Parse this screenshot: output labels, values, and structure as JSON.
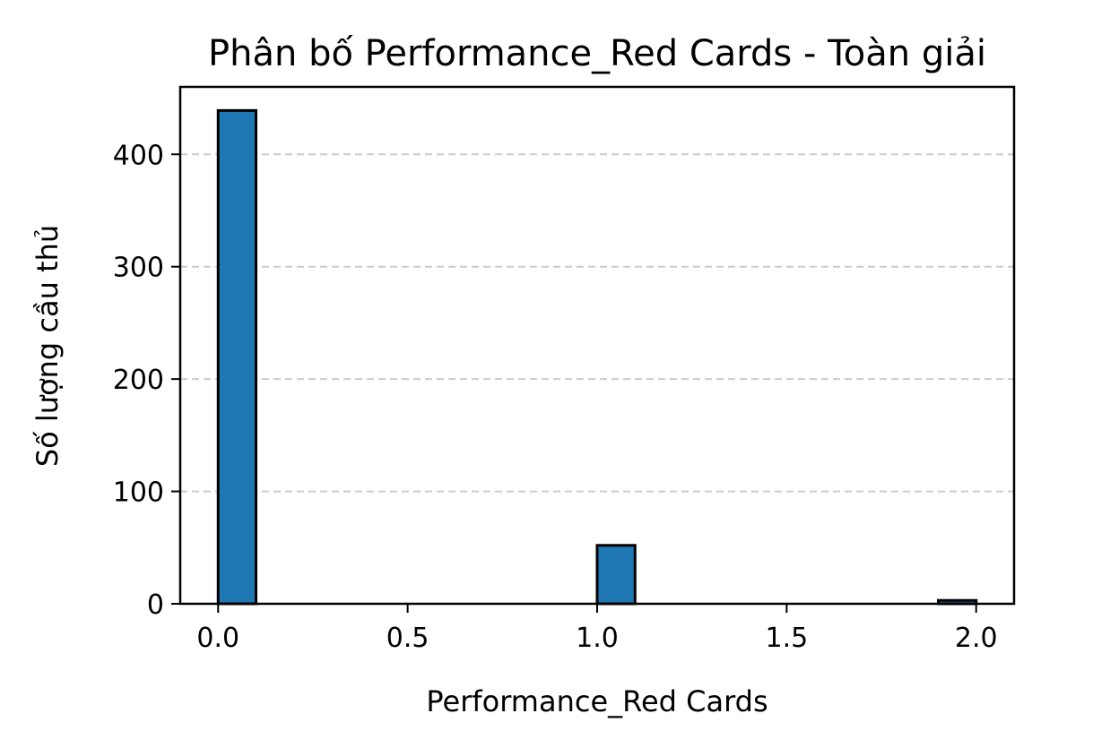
{
  "chart_data": {
    "type": "bar",
    "title": "Phân bố Performance_Red Cards - Toàn giải",
    "xlabel": "Performance_Red Cards",
    "ylabel": "Số lượng cầu thủ",
    "xlim": [
      -0.1,
      2.1
    ],
    "ylim": [
      0,
      460
    ],
    "xticks": [
      0.0,
      0.5,
      1.0,
      1.5,
      2.0
    ],
    "xtick_labels": [
      "0.0",
      "0.5",
      "1.0",
      "1.5",
      "2.0"
    ],
    "yticks": [
      0,
      100,
      200,
      300,
      400
    ],
    "ytick_labels": [
      "0",
      "100",
      "200",
      "300",
      "400"
    ],
    "bins": [
      {
        "x0": 0.0,
        "x1": 0.1,
        "value": 439
      },
      {
        "x0": 1.0,
        "x1": 1.1,
        "value": 52
      },
      {
        "x0": 1.9,
        "x1": 2.0,
        "value": 3
      }
    ],
    "grid": "y-dashed",
    "bar_color": "#1f77b4",
    "edge_color": "#000000",
    "grid_color": "#cccccc"
  }
}
